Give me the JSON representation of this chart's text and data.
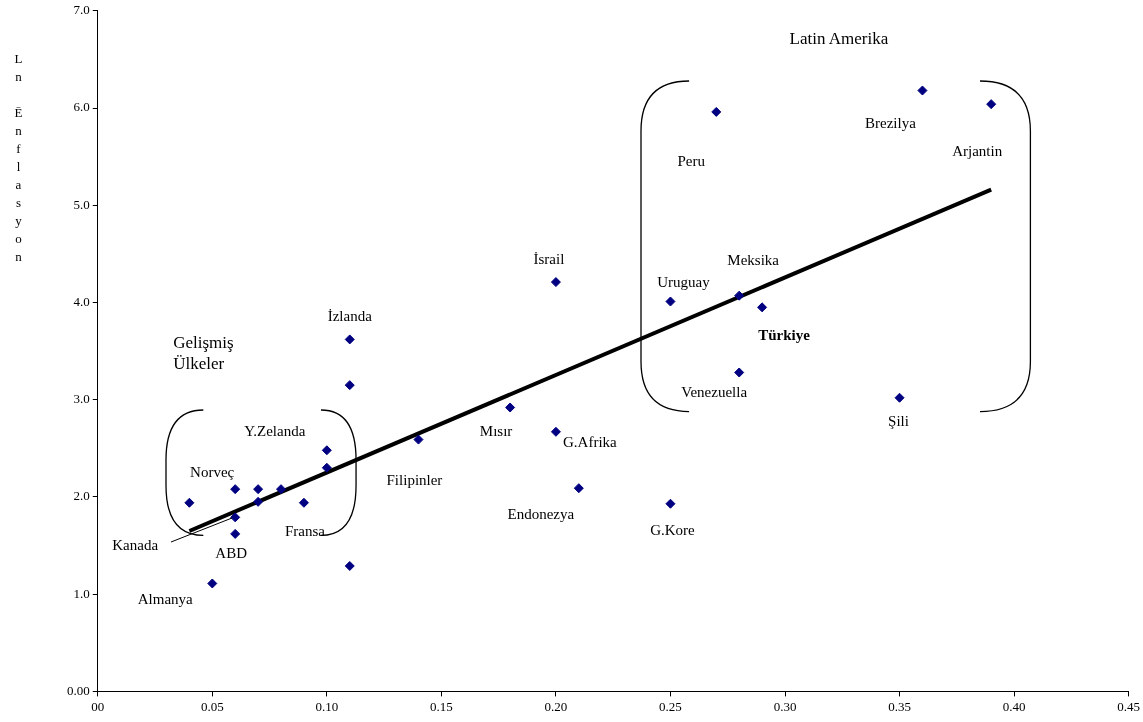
{
  "chart_data": {
    "type": "scatter",
    "ylabel": "Ln Ēnflasyon",
    "xlim": [
      0,
      0.45
    ],
    "ylim": [
      0,
      7
    ],
    "xticks": [
      {
        "value": 0,
        "label": "00"
      },
      {
        "value": 0.05,
        "label": "0.05"
      },
      {
        "value": 0.1,
        "label": "0.10"
      },
      {
        "value": 0.15,
        "label": "0.15"
      },
      {
        "value": 0.2,
        "label": "0.20"
      },
      {
        "value": 0.25,
        "label": "0.25"
      },
      {
        "value": 0.3,
        "label": "0.30"
      },
      {
        "value": 0.35,
        "label": "0.35"
      },
      {
        "value": 0.4,
        "label": "0.40"
      },
      {
        "value": 0.45,
        "label": "0.45"
      }
    ],
    "yticks": [
      {
        "value": 0,
        "label": "0.00"
      },
      {
        "value": 1,
        "label": "1.0"
      },
      {
        "value": 2,
        "label": "2.0"
      },
      {
        "value": 3,
        "label": "3.0"
      },
      {
        "value": 4,
        "label": "4.0"
      },
      {
        "value": 5,
        "label": "5.0"
      },
      {
        "value": 6,
        "label": "6.0"
      },
      {
        "value": 7,
        "label": "7.0"
      }
    ],
    "grid": false,
    "legend": false,
    "series": [
      {
        "type": "scatter",
        "marker": "diamond",
        "color": "#000080",
        "x": [
          0.04,
          0.06,
          0.07,
          0.08,
          0.07,
          0.09,
          0.06,
          0.06,
          0.05,
          0.1,
          0.1,
          0.11,
          0.11,
          0.11,
          0.14,
          0.18,
          0.2,
          0.2,
          0.21,
          0.25,
          0.25,
          0.28,
          0.29,
          0.28,
          0.27,
          0.36,
          0.39,
          0.35
        ],
        "values": [
          1.94,
          2.08,
          2.08,
          2.08,
          1.95,
          1.94,
          1.79,
          1.62,
          1.11,
          2.48,
          2.3,
          3.62,
          3.15,
          1.29,
          2.59,
          2.92,
          2.67,
          4.21,
          2.09,
          1.93,
          4.01,
          4.07,
          3.95,
          3.28,
          5.96,
          6.18,
          6.04,
          3.02
        ]
      },
      {
        "type": "line",
        "color": "#000000",
        "x": [
          0.04,
          0.39
        ],
        "values": [
          1.65,
          5.16
        ]
      }
    ],
    "annotations": [
      "Latin Amerika",
      "Gelişmiş Ülkeler",
      {
        "text": "Kanada",
        "x": 0.06,
        "y": 1.79
      },
      {
        "text": "Norveç",
        "x": 0.06,
        "y": 2.08
      },
      {
        "text": "ABD",
        "x": 0.06,
        "y": 1.62
      },
      {
        "text": "Almanya",
        "x": 0.05,
        "y": 1.11
      },
      {
        "text": "Y.Zelanda",
        "x": 0.1,
        "y": 2.48
      },
      {
        "text": "Fransa",
        "x": 0.09,
        "y": 1.94
      },
      {
        "text": "İzlanda",
        "x": 0.11,
        "y": 3.62
      },
      {
        "text": "Filipinler",
        "x": 0.14,
        "y": 2.59
      },
      {
        "text": "Mısır",
        "x": 0.18,
        "y": 2.92
      },
      {
        "text": "G.Afrika",
        "x": 0.2,
        "y": 2.67
      },
      {
        "text": "İsrail",
        "x": 0.2,
        "y": 4.21
      },
      {
        "text": "Endonezya",
        "x": 0.21,
        "y": 2.09
      },
      {
        "text": "G.Kore",
        "x": 0.25,
        "y": 1.93
      },
      {
        "text": "Uruguay",
        "x": 0.25,
        "y": 4.01
      },
      {
        "text": "Meksika",
        "x": 0.28,
        "y": 4.07
      },
      {
        "text": "Türkiye",
        "x": 0.29,
        "y": 3.95
      },
      {
        "text": "Venezuella",
        "x": 0.28,
        "y": 3.28
      },
      {
        "text": "Peru",
        "x": 0.27,
        "y": 5.96
      },
      {
        "text": "Brezilya",
        "x": 0.36,
        "y": 6.18
      },
      {
        "text": "Arjantin",
        "x": 0.39,
        "y": 6.04
      },
      {
        "text": "Şili",
        "x": 0.35,
        "y": 3.02
      }
    ]
  }
}
